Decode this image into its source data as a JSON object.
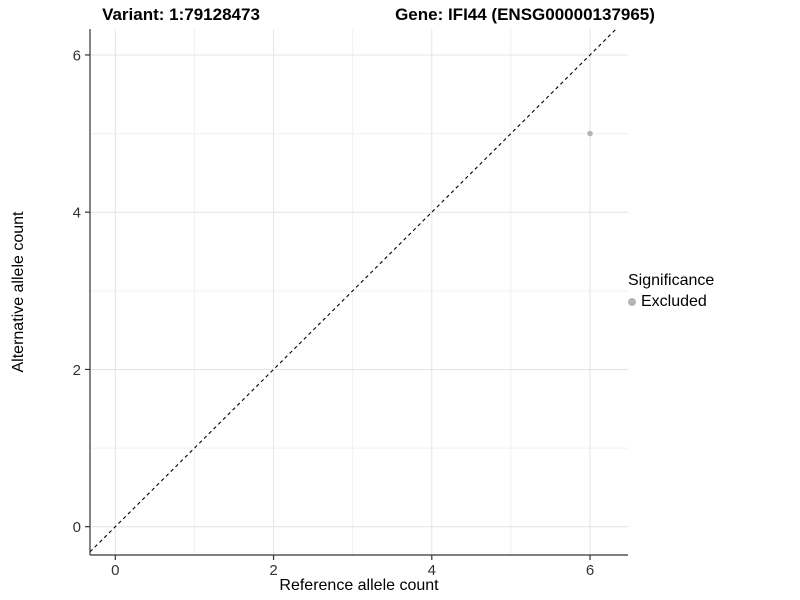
{
  "chart_data": {
    "type": "scatter",
    "title_left": "Variant: 1:79128473",
    "title_right": "Gene: IFI44 (ENSG00000137965)",
    "xlabel": "Reference allele count",
    "ylabel": "Alternative allele count",
    "xlim": [
      -0.32,
      6.48
    ],
    "ylim": [
      -0.36,
      6.33
    ],
    "xticks": [
      0,
      2,
      4,
      6
    ],
    "yticks": [
      0,
      2,
      4,
      6
    ],
    "minor_xticks": [
      1,
      3,
      5
    ],
    "minor_yticks": [
      1,
      3,
      5
    ],
    "grid": true,
    "legend_position": "right",
    "identity_line": {
      "style": "dashed",
      "slope": 1,
      "intercept": 0,
      "color": "#000000"
    },
    "series": [
      {
        "name": "Excluded",
        "color": "#b5b5b5",
        "points": [
          {
            "x": 6,
            "y": 5
          }
        ]
      }
    ],
    "legend": {
      "title": "Significance",
      "entries": [
        {
          "label": "Excluded",
          "color": "#b5b5b5"
        }
      ]
    },
    "colors": {
      "grid_major": "#e4e4e4",
      "grid_minor": "#f0f0f0",
      "axis_line": "#333333",
      "tick_label": "#333333",
      "background": "#ffffff"
    }
  }
}
